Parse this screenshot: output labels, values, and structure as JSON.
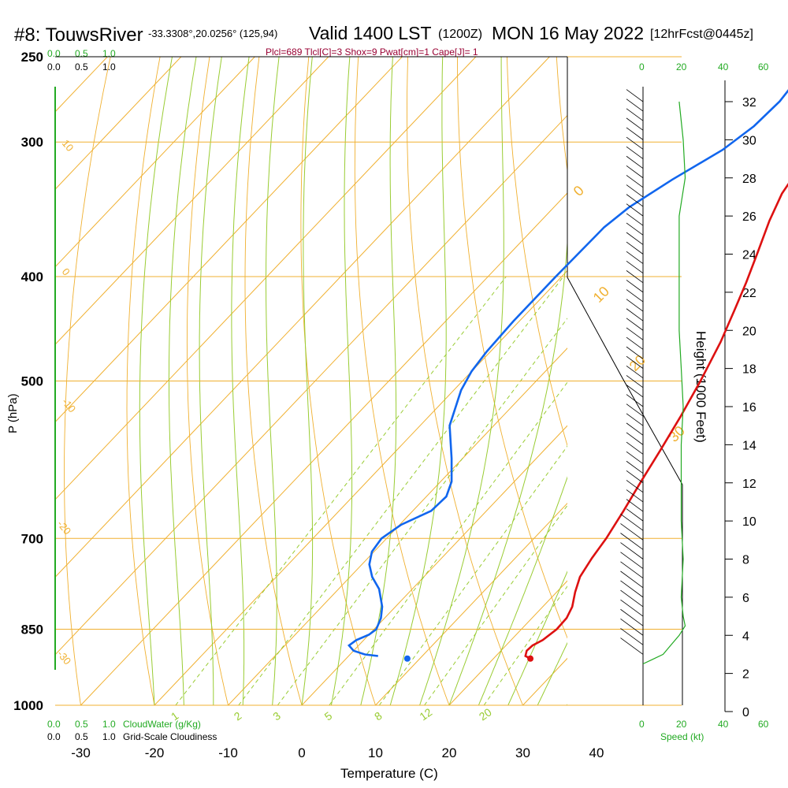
{
  "header": {
    "station": "#8: TouwsRiver",
    "coords": "-33.3308°,20.0256° (125,94)",
    "valid": "Valid 1400 LST",
    "utc": "(1200Z)",
    "date": "MON 16 May 2022",
    "forecast": "[12hrFcst@0445z]",
    "indices": "Plcl=689 Tlcl[C]=3 Shox=9 Pwat[cm]=1 Cape[J]= 1"
  },
  "cloud_scale": {
    "top_green": [
      "0.0",
      "0.5",
      "1.0"
    ],
    "top_black": [
      "0.0",
      "0.5",
      "1.0"
    ],
    "bottom_green": [
      "0.0",
      "0.5",
      "1.0"
    ],
    "bottom_green_label": "CloudWater (g/Kg)",
    "bottom_black": [
      "0.0",
      "0.5",
      "1.0"
    ],
    "bottom_black_label": "Grid-Scale Cloudiness"
  },
  "speed_scale": {
    "ticks": [
      "0",
      "20",
      "40",
      "60"
    ],
    "label": "Speed (kt)"
  },
  "chart_data": {
    "type": "line",
    "xlabel": "Temperature (C)",
    "ylabel": "P (hPa)",
    "y2label": "Height (1000 Feet)",
    "xticks": [
      "-30",
      "-20",
      "-10",
      "0",
      "10",
      "20",
      "30",
      "40"
    ],
    "yticks": [
      "250",
      "300",
      "400",
      "500",
      "700",
      "850",
      "1000"
    ],
    "y2ticks": [
      "0",
      "2",
      "4",
      "6",
      "8",
      "10",
      "12",
      "14",
      "16",
      "18",
      "20",
      "22",
      "24",
      "26",
      "28",
      "30",
      "32"
    ],
    "isotherm_labels": [
      "0",
      "10",
      "20",
      "30"
    ],
    "cold_isotherm_labels": [
      "10",
      "0",
      "-10",
      "-20",
      "-30"
    ],
    "mixing_ratio_labels": [
      "1",
      "2",
      "3",
      "5",
      "8",
      "12",
      "20"
    ],
    "colors": {
      "temperature": "#dd1111",
      "dewpoint": "#1166ee",
      "isotherm": "#f0b030",
      "adiabat": "#99cc33",
      "mixing": "#99cc33",
      "green": "#22aa22",
      "title_red": "#990033"
    },
    "series": [
      {
        "name": "Temperature",
        "points": [
          [
            25.0,
            905
          ],
          [
            24.0,
            900
          ],
          [
            23.5,
            890
          ],
          [
            23.6,
            880
          ],
          [
            24.3,
            870
          ],
          [
            24.8,
            850
          ],
          [
            24.7,
            830
          ],
          [
            24.0,
            810
          ],
          [
            22.5,
            785
          ],
          [
            21.2,
            760
          ],
          [
            20.4,
            730
          ],
          [
            19.8,
            700
          ],
          [
            18.6,
            660
          ],
          [
            17.2,
            620
          ],
          [
            15.8,
            580
          ],
          [
            14.2,
            540
          ],
          [
            12.3,
            500
          ],
          [
            10.0,
            460
          ],
          [
            7.8,
            430
          ],
          [
            5.8,
            405
          ],
          [
            3.5,
            380
          ],
          [
            1.0,
            355
          ],
          [
            -0.8,
            335
          ],
          [
            -1.6,
            320
          ],
          [
            -2.0,
            300
          ],
          [
            -2.5,
            275
          ],
          [
            -3.0,
            260
          ]
        ]
      },
      {
        "name": "Dewpoint",
        "points": [
          [
            4.0,
            900
          ],
          [
            2.0,
            897
          ],
          [
            0.0,
            890
          ],
          [
            -1.3,
            880
          ],
          [
            -1.0,
            870
          ],
          [
            0.0,
            860
          ],
          [
            0.3,
            850
          ],
          [
            -0.5,
            830
          ],
          [
            -1.8,
            810
          ],
          [
            -4.5,
            780
          ],
          [
            -7.0,
            760
          ],
          [
            -9.0,
            740
          ],
          [
            -10.3,
            720
          ],
          [
            -10.7,
            700
          ],
          [
            -9.8,
            680
          ],
          [
            -7.5,
            660
          ],
          [
            -7.3,
            640
          ],
          [
            -8.5,
            620
          ],
          [
            -11.5,
            590
          ],
          [
            -16.0,
            550
          ],
          [
            -19.0,
            510
          ],
          [
            -20.0,
            490
          ],
          [
            -20.5,
            470
          ],
          [
            -20.8,
            440
          ],
          [
            -20.8,
            400
          ],
          [
            -20.6,
            360
          ],
          [
            -19.8,
            345
          ],
          [
            -17.5,
            325
          ],
          [
            -14.5,
            305
          ],
          [
            -13.3,
            290
          ],
          [
            -13.0,
            275
          ],
          [
            -13.5,
            262
          ]
        ]
      }
    ],
    "parcel_start": {
      "temperature": 25.0,
      "dewpoint": 8.3,
      "pressure": 905
    },
    "height_profile_kft": [
      [
        2.5,
        0
      ],
      [
        2.7,
        4
      ],
      [
        3.0,
        10
      ],
      [
        3.5,
        14
      ],
      [
        4.0,
        18
      ],
      [
        4.5,
        21
      ],
      [
        5.0,
        20
      ],
      [
        6.0,
        19
      ],
      [
        8.0,
        20
      ],
      [
        10.0,
        19
      ],
      [
        12.0,
        19
      ],
      [
        14.0,
        19
      ],
      [
        16.0,
        20
      ],
      [
        18.0,
        19
      ],
      [
        20.0,
        18
      ],
      [
        22.0,
        18
      ],
      [
        24.0,
        18
      ],
      [
        26.0,
        18
      ],
      [
        28.0,
        21
      ],
      [
        30.0,
        20
      ],
      [
        32.0,
        18
      ]
    ]
  }
}
